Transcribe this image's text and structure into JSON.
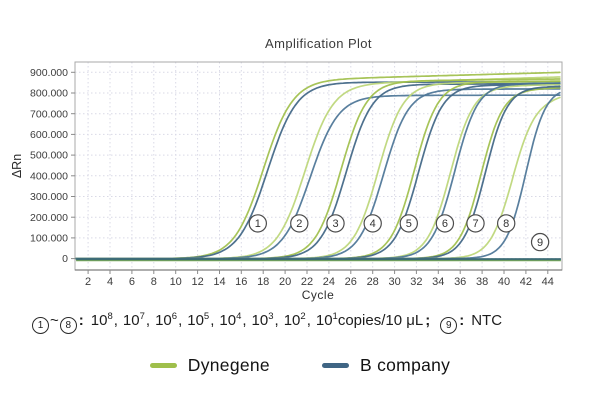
{
  "chart_data": {
    "type": "line",
    "title": "Amplification Plot",
    "xlabel": "Cycle",
    "ylabel": "ΔRn",
    "x_ticks": [
      2,
      4,
      6,
      8,
      10,
      12,
      14,
      16,
      18,
      20,
      22,
      24,
      26,
      28,
      30,
      32,
      34,
      36,
      38,
      40,
      42,
      44
    ],
    "y_ticks": [
      {
        "value": 900000,
        "label": "900.000"
      },
      {
        "value": 800000,
        "label": "800.000"
      },
      {
        "value": 700000,
        "label": "700.000"
      },
      {
        "value": 600000,
        "label": "600.000"
      },
      {
        "value": 500000,
        "label": "500.000"
      },
      {
        "value": 400000,
        "label": "400.000"
      },
      {
        "value": 300000,
        "label": "300.000"
      },
      {
        "value": 200000,
        "label": "200.000"
      },
      {
        "value": 100000,
        "label": "100.000"
      },
      {
        "value": 0,
        "label": "0"
      }
    ],
    "xlim": [
      0.8,
      45.3
    ],
    "ylim": [
      -55000,
      950000
    ],
    "grid": true,
    "legend_position": "bottom-center",
    "curve_model": "sigmoid: value(c) = plateau_drift / (1 + exp(-k*(c - ct)))",
    "series": [
      {
        "name": "Dynegene",
        "color": "#9fbf4b",
        "color_alt": "#bcd677",
        "ntc_value": -7500,
        "ntc_color": "#76a84f",
        "curves": [
          {
            "group": "1",
            "ct": 18.0,
            "k": 0.75,
            "plateau": 860000,
            "end": 900000
          },
          {
            "group": "2",
            "ct": 21.8,
            "k": 0.78,
            "plateau": 840000,
            "end": 878000
          },
          {
            "group": "3",
            "ct": 25.1,
            "k": 0.85,
            "plateau": 856000,
            "end": 868000
          },
          {
            "group": "4",
            "ct": 28.5,
            "k": 0.88,
            "plateau": 846000,
            "end": 856000
          },
          {
            "group": "5",
            "ct": 31.8,
            "k": 0.92,
            "plateau": 852000,
            "end": 858000
          },
          {
            "group": "6",
            "ct": 35.1,
            "k": 0.95,
            "plateau": 828000,
            "end": 842000
          },
          {
            "group": "7",
            "ct": 37.9,
            "k": 1.0,
            "plateau": 815000,
            "end": 826000
          },
          {
            "group": "8",
            "ct": 40.7,
            "k": 1.0,
            "plateau": 742000,
            "end": 790000
          }
        ]
      },
      {
        "name": "B company",
        "color": "#3f6584",
        "color_alt": "#4b7496",
        "ntc_value": -3000,
        "ntc_color": "#3a6a74",
        "curves": [
          {
            "group": "1",
            "ct": 18.4,
            "k": 0.75,
            "plateau": 852000,
            "end": 854000
          },
          {
            "group": "2",
            "ct": 22.3,
            "k": 0.78,
            "plateau": 788000,
            "end": 790000
          },
          {
            "group": "3",
            "ct": 25.6,
            "k": 0.85,
            "plateau": 842000,
            "end": 845000
          },
          {
            "group": "4",
            "ct": 29.0,
            "k": 0.88,
            "plateau": 818000,
            "end": 820000
          },
          {
            "group": "5",
            "ct": 32.2,
            "k": 0.92,
            "plateau": 838000,
            "end": 840000
          },
          {
            "group": "6",
            "ct": 35.5,
            "k": 0.95,
            "plateau": 846000,
            "end": 848000
          },
          {
            "group": "7",
            "ct": 38.3,
            "k": 1.0,
            "plateau": 832000,
            "end": 832000
          },
          {
            "group": "8",
            "ct": 42.0,
            "k": 1.1,
            "plateau": 828000,
            "end": 828000
          }
        ]
      }
    ],
    "annotations": [
      {
        "label": "1",
        "cycle": 17.5,
        "value": 170000
      },
      {
        "label": "2",
        "cycle": 21.3,
        "value": 170000
      },
      {
        "label": "3",
        "cycle": 24.6,
        "value": 170000
      },
      {
        "label": "4",
        "cycle": 28.0,
        "value": 170000
      },
      {
        "label": "5",
        "cycle": 31.3,
        "value": 170000
      },
      {
        "label": "6",
        "cycle": 34.6,
        "value": 170000
      },
      {
        "label": "7",
        "cycle": 37.4,
        "value": 170000
      },
      {
        "label": "8",
        "cycle": 40.2,
        "value": 170000
      },
      {
        "label": "9",
        "cycle": 43.3,
        "value": 80000
      }
    ]
  },
  "caption": {
    "series_range": {
      "from": "1",
      "tilde": "~",
      "to": "8"
    },
    "colon": ":",
    "dilutions": [
      {
        "base": "10",
        "exp": "8"
      },
      {
        "base": "10",
        "exp": "7"
      },
      {
        "base": "10",
        "exp": "6"
      },
      {
        "base": "10",
        "exp": "5"
      },
      {
        "base": "10",
        "exp": "4"
      },
      {
        "base": "10",
        "exp": "3"
      },
      {
        "base": "10",
        "exp": "2"
      },
      {
        "base": "10",
        "exp": "1"
      }
    ],
    "separator": ",",
    "unit": "copies/10 μL",
    "semicolon": ";",
    "ntc": {
      "label": "9",
      "text": "NTC"
    }
  },
  "legend": {
    "items": [
      {
        "name": "Dynegene",
        "color": "#9fbf4b"
      },
      {
        "name": "B company",
        "color": "#3f6584"
      }
    ]
  },
  "style_colors": {
    "grid": "#d9d9e6",
    "border": "#a9a9a9",
    "axis": "#7d7d7d",
    "tick_text": "#3d3d3d",
    "annotation_circle": "#4c4c4c"
  }
}
